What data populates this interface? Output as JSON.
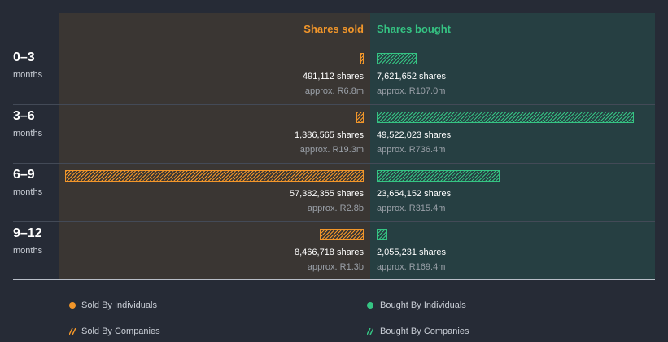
{
  "headers": {
    "sold": "Shares sold",
    "bought": "Shares bought"
  },
  "colors": {
    "sold": "#f2962a",
    "bought": "#35c483"
  },
  "chart_data": {
    "type": "bar",
    "categories": [
      "0–3 months",
      "3–6 months",
      "6–9 months",
      "9–12 months"
    ],
    "series": [
      {
        "name": "Shares sold",
        "values": [
          491112,
          1386565,
          57382355,
          8466718
        ]
      },
      {
        "name": "Shares bought",
        "values": [
          7621652,
          49522023,
          23654152,
          2055231
        ]
      }
    ]
  },
  "rows": [
    {
      "period": "0–3",
      "unit": "months",
      "sold": {
        "shares": 491112,
        "shares_label": "491,112 shares",
        "approx": "approx. R6.8m"
      },
      "bought": {
        "shares": 7621652,
        "shares_label": "7,621,652 shares",
        "approx": "approx. R107.0m"
      }
    },
    {
      "period": "3–6",
      "unit": "months",
      "sold": {
        "shares": 1386565,
        "shares_label": "1,386,565 shares",
        "approx": "approx. R19.3m"
      },
      "bought": {
        "shares": 49522023,
        "shares_label": "49,522,023 shares",
        "approx": "approx. R736.4m"
      }
    },
    {
      "period": "6–9",
      "unit": "months",
      "sold": {
        "shares": 57382355,
        "shares_label": "57,382,355 shares",
        "approx": "approx. R2.8b"
      },
      "bought": {
        "shares": 23654152,
        "shares_label": "23,654,152 shares",
        "approx": "approx. R315.4m"
      }
    },
    {
      "period": "9–12",
      "unit": "months",
      "sold": {
        "shares": 8466718,
        "shares_label": "8,466,718 shares",
        "approx": "approx. R1.3b"
      },
      "bought": {
        "shares": 2055231,
        "shares_label": "2,055,231 shares",
        "approx": "approx. R169.4m"
      }
    }
  ],
  "legend": {
    "sold_individuals": "Sold By Individuals",
    "sold_companies": "Sold By Companies",
    "bought_individuals": "Bought By Individuals",
    "bought_companies": "Bought By Companies"
  }
}
